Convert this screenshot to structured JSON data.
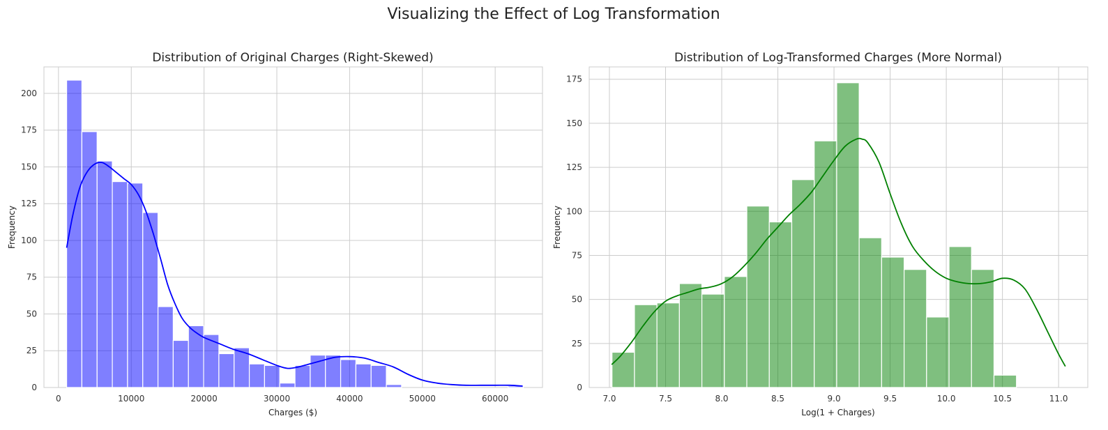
{
  "figure": {
    "suptitle": "Visualizing the Effect of Log Transformation"
  },
  "chart_data": [
    {
      "type": "bar",
      "title": "Distribution of Original Charges (Right-Skewed)",
      "xlabel": "Charges ($)",
      "ylabel": "Frequency",
      "xlim": [
        -2000,
        66500
      ],
      "ylim": [
        0,
        218
      ],
      "xticks": [
        0,
        10000,
        20000,
        30000,
        40000,
        50000,
        60000
      ],
      "yticks": [
        0,
        25,
        50,
        75,
        100,
        125,
        150,
        175,
        200
      ],
      "bar_color": "#0000ff",
      "kde_color": "#0000ff",
      "bins": {
        "start": 1121.87,
        "width": 2091.57,
        "counts": [
          209,
          174,
          154,
          140,
          139,
          119,
          55,
          32,
          42,
          36,
          23,
          27,
          16,
          15,
          3,
          15,
          22,
          22,
          19,
          16,
          15,
          2,
          0,
          0,
          0,
          0,
          0,
          0,
          0,
          1
        ]
      },
      "kde": {
        "x": [
          1121,
          2000,
          3000,
          4000,
          5000,
          6000,
          7000,
          8000,
          9000,
          10000,
          11000,
          12000,
          13000,
          14000,
          15000,
          16000,
          17000,
          18000,
          19000,
          20000,
          22000,
          24000,
          26000,
          28000,
          30000,
          31500,
          33000,
          34500,
          36000,
          38000,
          40000,
          42000,
          44000,
          46000,
          48000,
          50000,
          52000,
          54000,
          56000,
          58000,
          60000,
          62000,
          63770
        ],
        "y": [
          95,
          118,
          137,
          147,
          152,
          153,
          150,
          146,
          142,
          138,
          131,
          120,
          105,
          88,
          70,
          57,
          47,
          41,
          37,
          34,
          30,
          26,
          23,
          19,
          15,
          13,
          14,
          16,
          18,
          20.5,
          21,
          20,
          17,
          14,
          9,
          5,
          3,
          2,
          1.5,
          1.5,
          1.5,
          1.5,
          1
        ]
      }
    },
    {
      "type": "bar",
      "title": "Distribution of Log-Transformed Charges (More Normal)",
      "xlabel": "Log(1 + Charges)",
      "ylabel": "Frequency",
      "xlim": [
        6.82,
        11.26
      ],
      "ylim": [
        0,
        182
      ],
      "xticks": [
        7.0,
        7.5,
        8.0,
        8.5,
        9.0,
        9.5,
        10.0,
        10.5,
        11.0
      ],
      "yticks": [
        0,
        25,
        50,
        75,
        100,
        125,
        150,
        175
      ],
      "bar_color": "#008000",
      "kde_color": "#008000",
      "bins": {
        "start": 7.023,
        "width": 0.2001,
        "counts": [
          20,
          47,
          48,
          59,
          53,
          63,
          103,
          94,
          118,
          140,
          173,
          85,
          74,
          67,
          40,
          80,
          67,
          7
        ]
      },
      "kde": {
        "x": [
          7.02,
          7.1,
          7.2,
          7.3,
          7.4,
          7.5,
          7.6,
          7.7,
          7.8,
          7.9,
          8.0,
          8.1,
          8.2,
          8.3,
          8.4,
          8.5,
          8.6,
          8.7,
          8.8,
          8.9,
          9.0,
          9.1,
          9.2,
          9.25,
          9.3,
          9.4,
          9.5,
          9.6,
          9.7,
          9.8,
          9.9,
          10.0,
          10.1,
          10.2,
          10.3,
          10.4,
          10.5,
          10.6,
          10.7,
          10.8,
          10.9,
          11.0,
          11.06
        ],
        "y": [
          13,
          18,
          26,
          35,
          43,
          49,
          52,
          54,
          56,
          57,
          59,
          63,
          69,
          76,
          84,
          91,
          98,
          104,
          111,
          120,
          129,
          137,
          141,
          141,
          139,
          128,
          110,
          93,
          80,
          72,
          66,
          62,
          60,
          59,
          59,
          60,
          62,
          61,
          56,
          45,
          32,
          19,
          12
        ]
      }
    }
  ]
}
